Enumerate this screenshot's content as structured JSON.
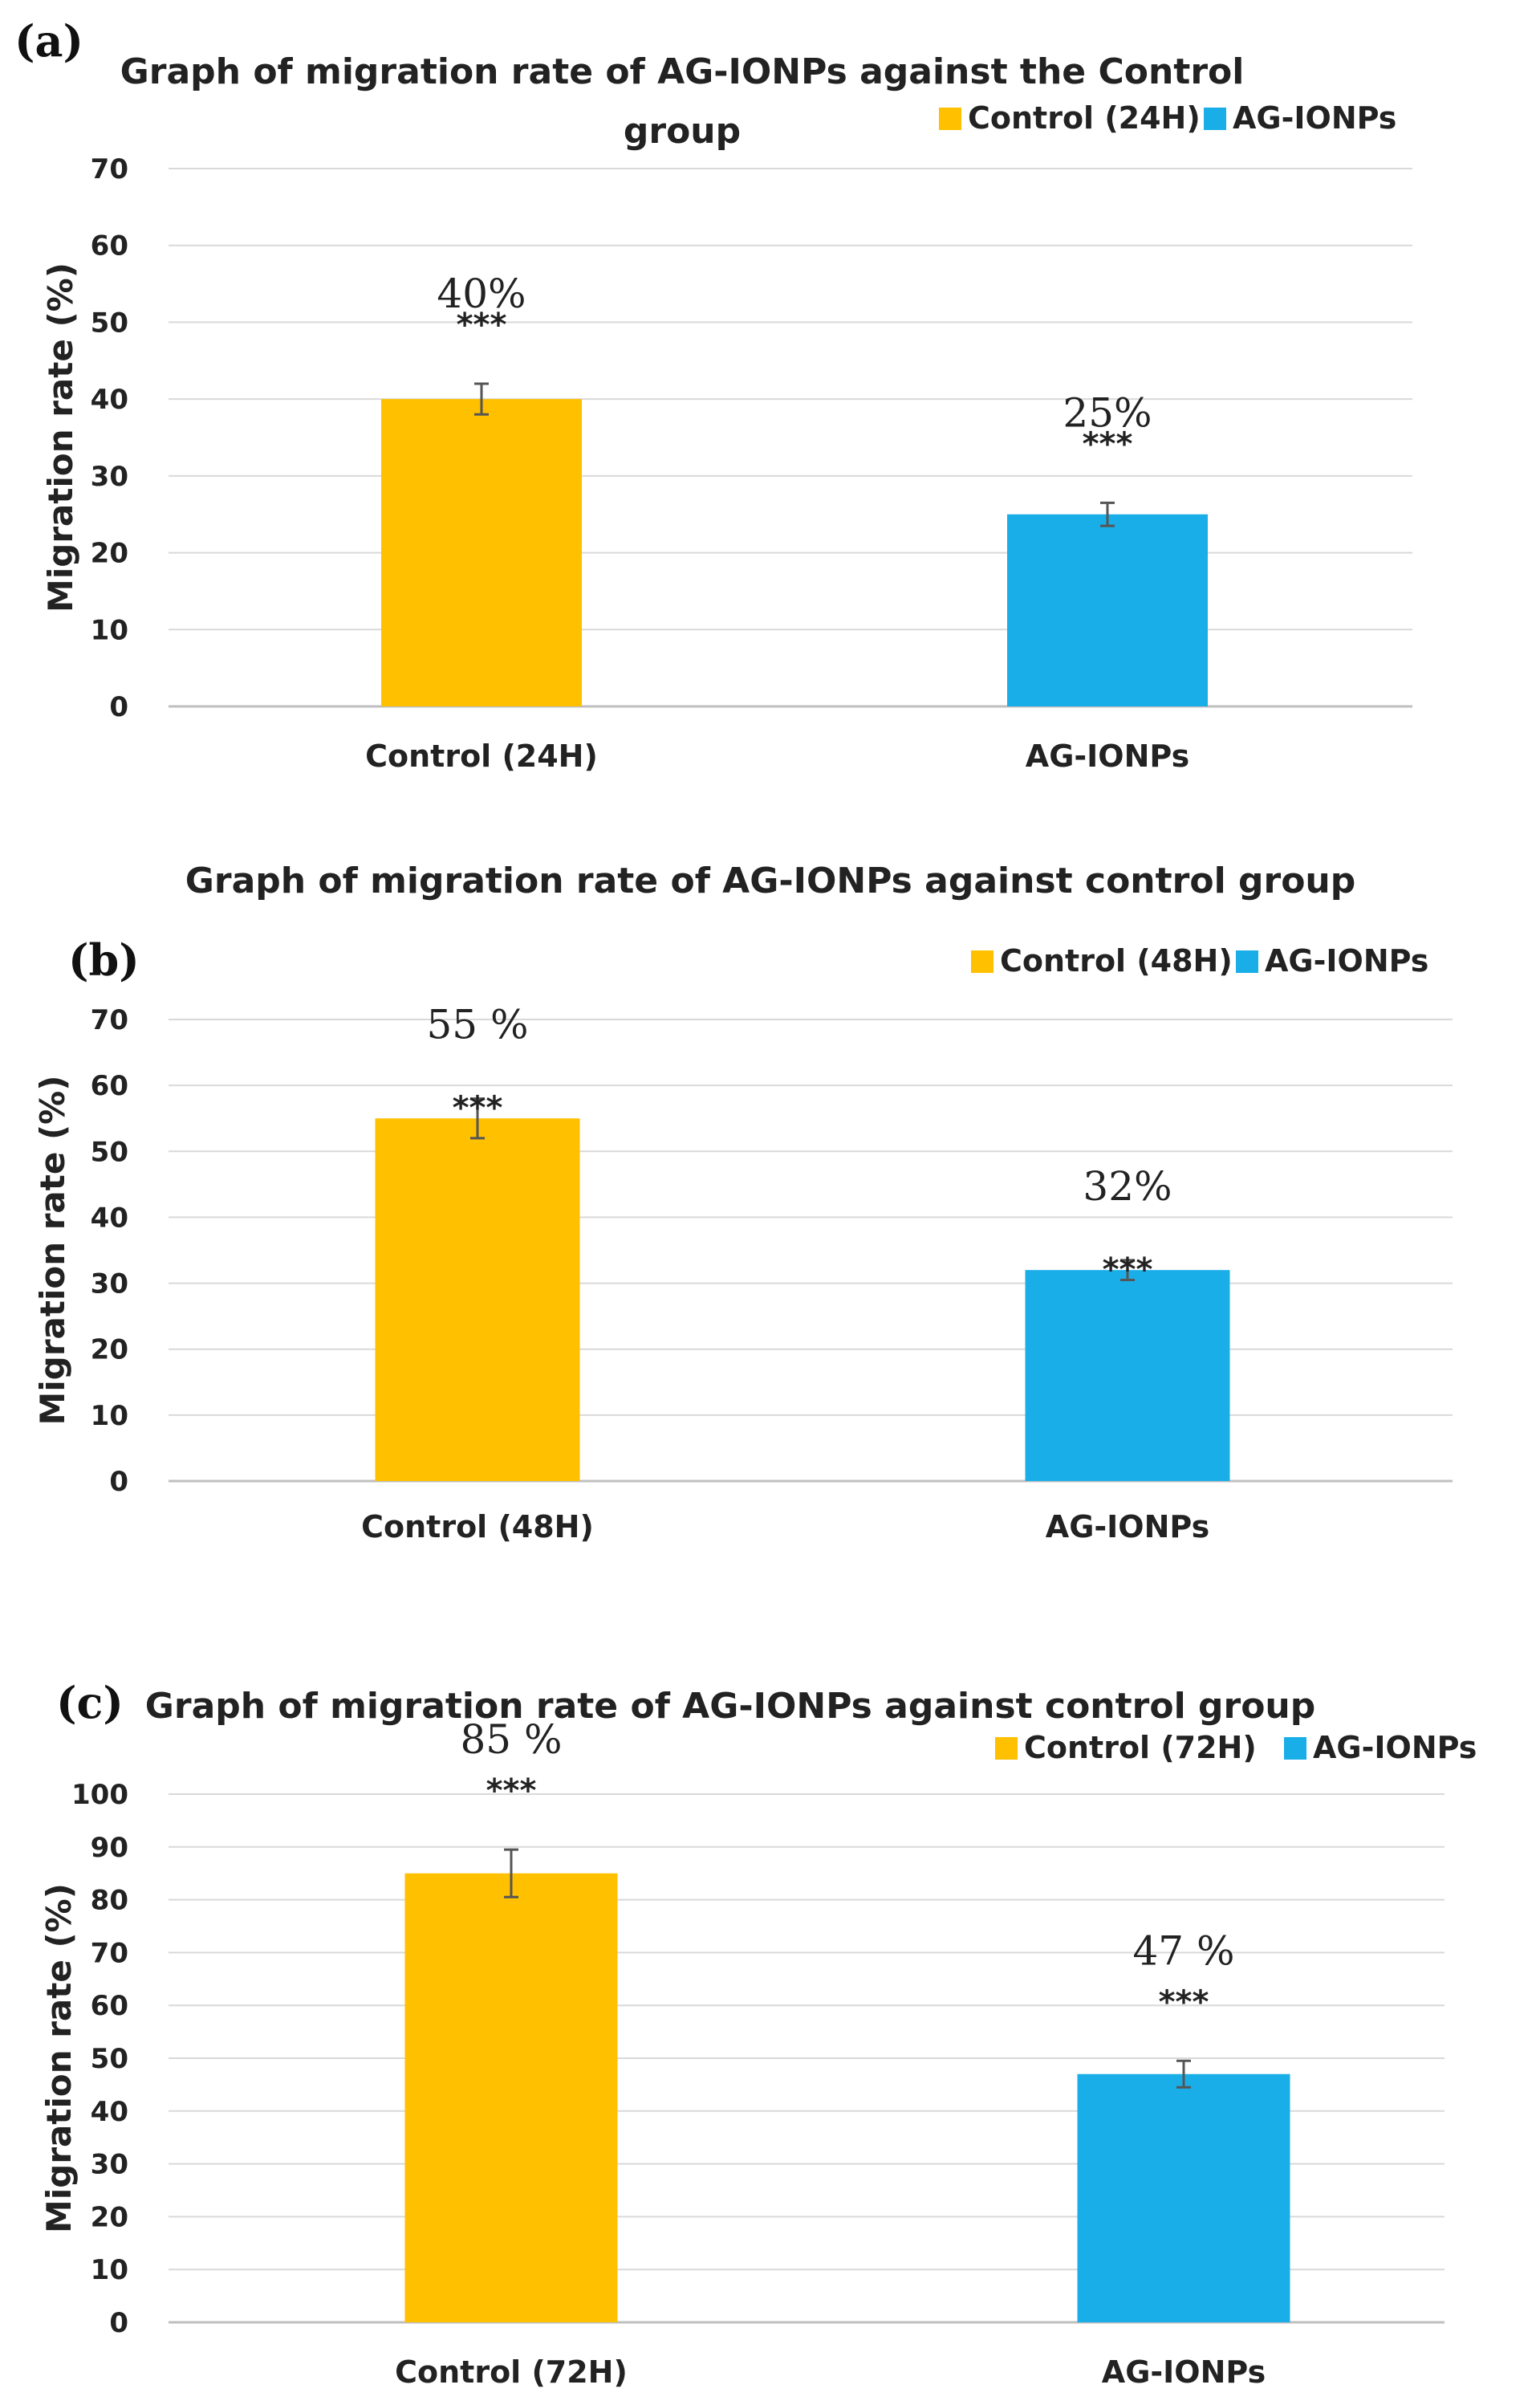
{
  "chart_data": [
    {
      "type": "bar",
      "panel_label": "(a)",
      "title_lines": [
        "Graph of migration rate of AG-IONPs against the Control",
        "group"
      ],
      "ylabel": "Migration rate (%)",
      "xlabel": "",
      "ylim": [
        0,
        70
      ],
      "yticks": [
        0,
        10,
        20,
        30,
        40,
        50,
        60,
        70
      ],
      "grid": true,
      "legend_position": "top-right",
      "categories": [
        "Control (24H)",
        "AG-IONPs"
      ],
      "values": [
        40,
        25
      ],
      "errors": [
        2,
        1.5
      ],
      "value_labels": [
        "40%",
        "25%"
      ],
      "significance": [
        "***",
        "***"
      ],
      "colors": [
        "#FFC000",
        "#1AAEE8"
      ],
      "legend": [
        "Control (24H)",
        "AG-IONPs"
      ]
    },
    {
      "type": "bar",
      "panel_label": "(b)",
      "title_lines": [
        "Graph of migration rate of AG-IONPs against control group"
      ],
      "ylabel": "Migration rate (%)",
      "xlabel": "",
      "ylim": [
        0,
        70
      ],
      "yticks": [
        0,
        10,
        20,
        30,
        40,
        50,
        60,
        70
      ],
      "grid": true,
      "legend_position": "top-right",
      "categories": [
        "Control (48H)",
        "AG-IONPs"
      ],
      "values": [
        55,
        32
      ],
      "errors": [
        3,
        1.5
      ],
      "value_labels": [
        "55 %",
        "32%"
      ],
      "significance": [
        "***",
        "***"
      ],
      "colors": [
        "#FFC000",
        "#1AAEE8"
      ],
      "legend": [
        "Control (48H)",
        "AG-IONPs"
      ]
    },
    {
      "type": "bar",
      "panel_label": "(c)",
      "title_lines": [
        "Graph of migration rate of AG-IONPs against control group"
      ],
      "ylabel": "Migration rate (%)",
      "xlabel": "",
      "ylim": [
        0,
        100
      ],
      "yticks": [
        0,
        10,
        20,
        30,
        40,
        50,
        60,
        70,
        80,
        90,
        100
      ],
      "grid": true,
      "legend_position": "top-right",
      "categories": [
        "Control (72H)",
        "AG-IONPs"
      ],
      "values": [
        85,
        47
      ],
      "errors": [
        4.5,
        2.5
      ],
      "value_labels": [
        "85 %",
        "47 %"
      ],
      "significance": [
        "***",
        "***"
      ],
      "colors": [
        "#FFC000",
        "#1AAEE8"
      ],
      "legend": [
        "Control (72H)",
        "AG-IONPs"
      ]
    }
  ]
}
